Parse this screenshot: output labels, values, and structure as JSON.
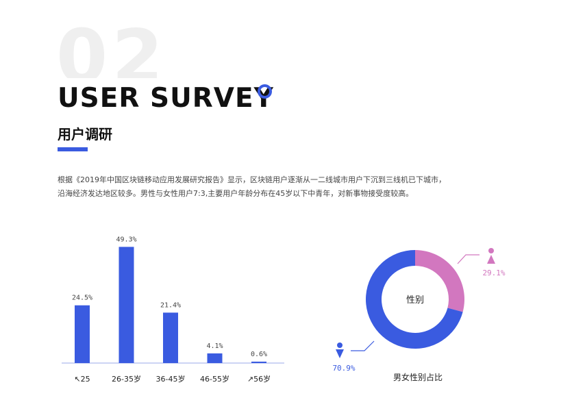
{
  "header": {
    "section_number": "02",
    "title": "USER SURVEY",
    "subtitle": "用户调研"
  },
  "intro": {
    "line1": "根据《2019年中国区块链移动应用发展研究报告》显示，区块链用户逐渐从一二线城市用户下沉到三线机已下城市，",
    "line2": "沿海经济发达地区较多。男性与女性用户7:3,主要用户年龄分布在45岁以下中青年，对新事物接受度较高。"
  },
  "colors": {
    "accent": "#3a5be0",
    "male": "#3a5be0",
    "female": "#d277bf",
    "axis": "#9aa8e8"
  },
  "chart_data": [
    {
      "type": "bar",
      "categories": [
        "↖25",
        "26-35岁",
        "36-45岁",
        "46-55岁",
        "↗56岁"
      ],
      "values": [
        24.5,
        49.3,
        21.4,
        4.1,
        0.6
      ],
      "data_labels": [
        "24.5%",
        "49.3%",
        "21.4%",
        "4.1%",
        "0.6%"
      ],
      "ylim": [
        0,
        50
      ],
      "grid": false,
      "color": "#3a5be0"
    },
    {
      "type": "pie",
      "style": "donut",
      "center_label": "性别",
      "caption": "男女性别占比",
      "slices": [
        {
          "label": "70.9%",
          "value": 70.9,
          "color": "#3a5be0",
          "icon": "male-icon"
        },
        {
          "label": "29.1%",
          "value": 29.1,
          "color": "#d277bf",
          "icon": "female-icon"
        }
      ]
    }
  ]
}
